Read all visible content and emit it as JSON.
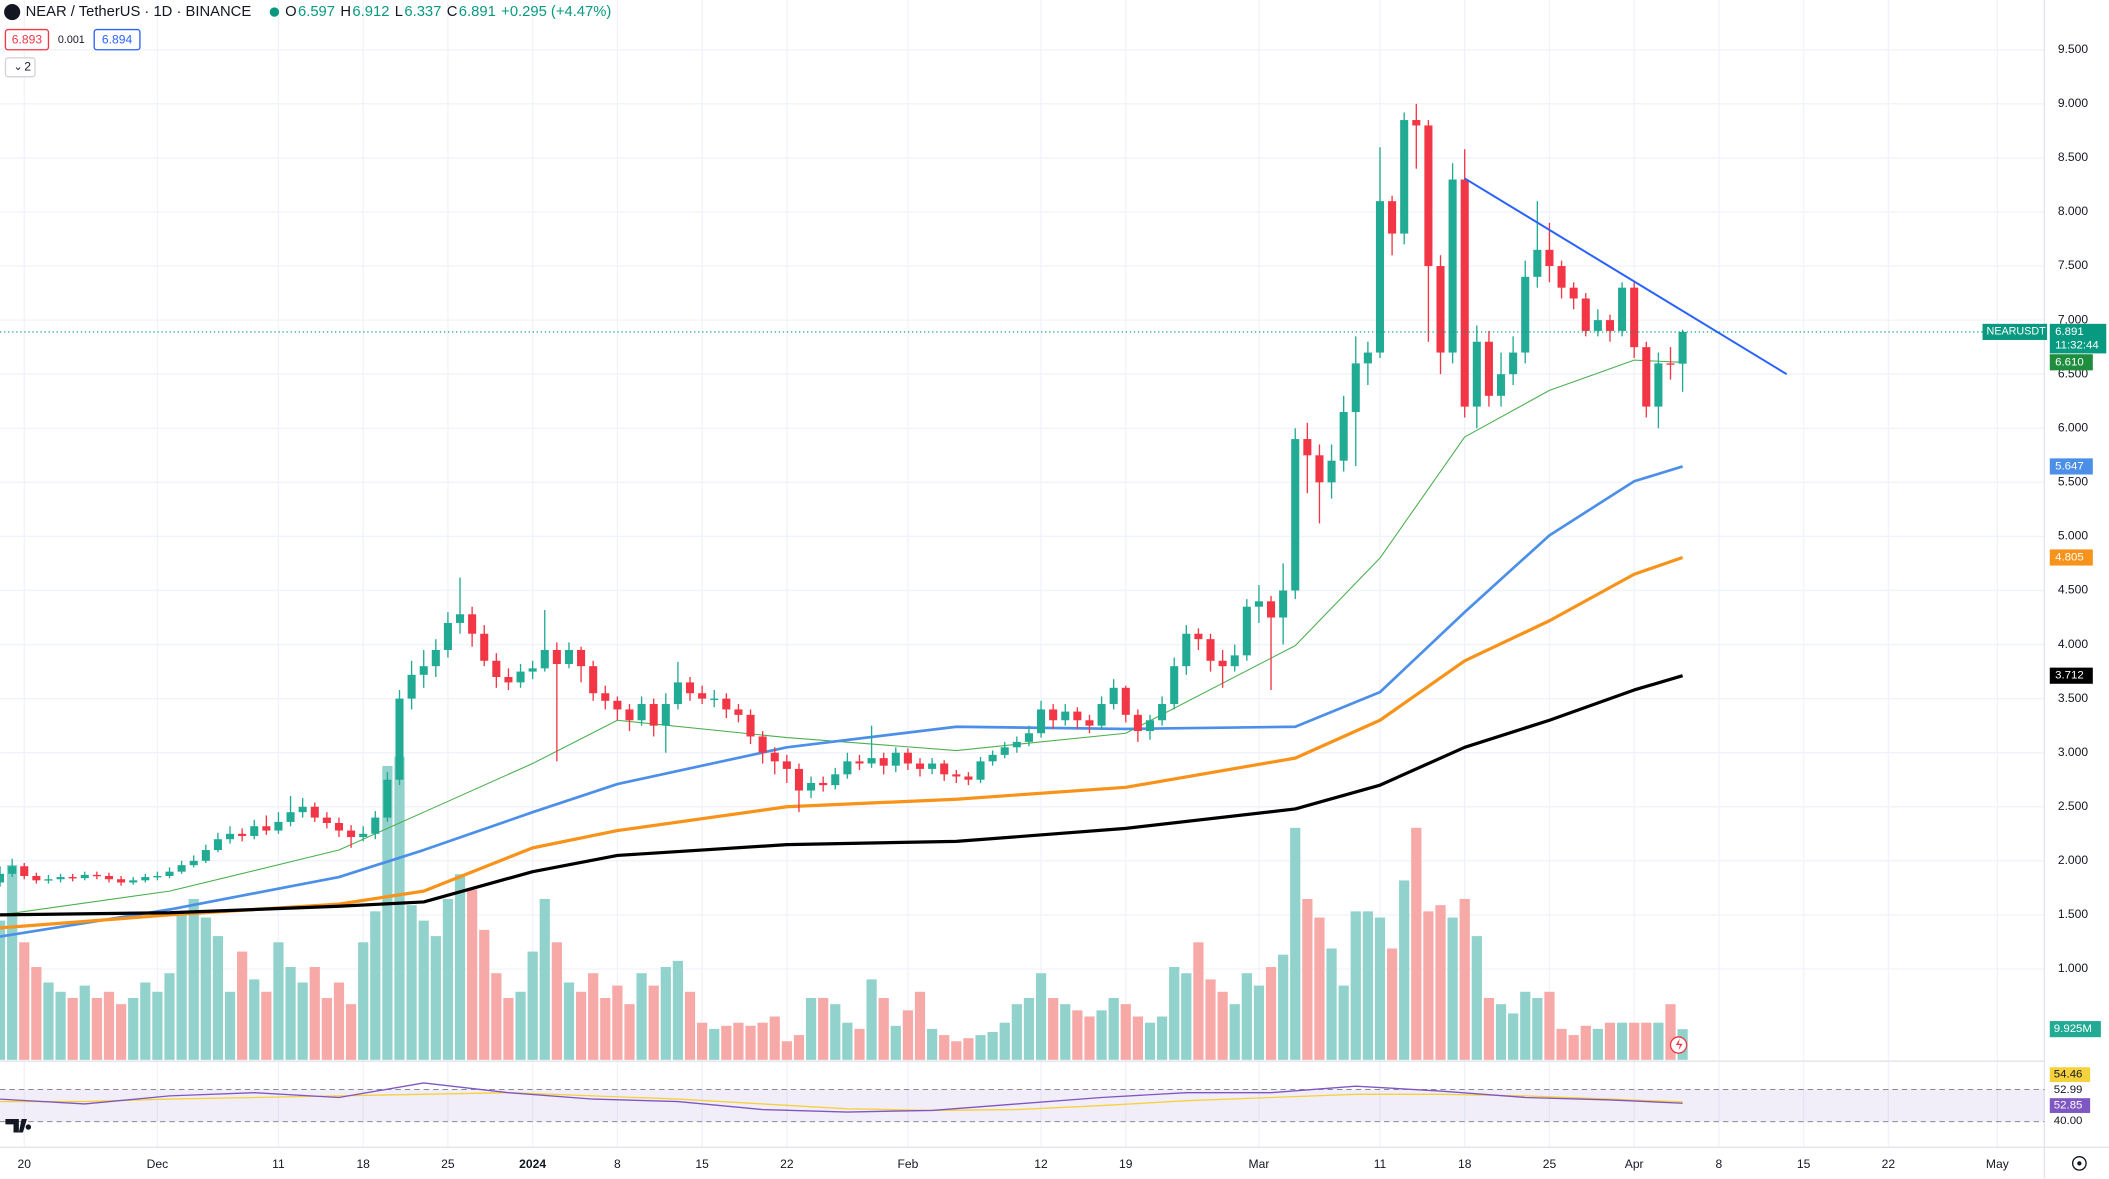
{
  "chart_data": {
    "type": "candlestick",
    "header": {
      "symbol": "NEAR / TetherUS · 1D · BINANCE",
      "ohlc": [
        {
          "key": "O",
          "value": "6.597"
        },
        {
          "key": "H",
          "value": "6.912"
        },
        {
          "key": "L",
          "value": "6.337"
        },
        {
          "key": "C",
          "value": "6.891"
        }
      ],
      "change": "+0.295 (+4.47%)",
      "sell": "6.893",
      "spread": "0.001",
      "buy": "6.894",
      "indicators": "2"
    },
    "up_color": "#22ab94",
    "down_color": "#f23645",
    "volume_up_color": "#92d2cc",
    "volume_down_color": "#f7a9a7",
    "ylim": [
      0.16,
      9.96
    ],
    "yticks": [
      {
        "value": 1.0,
        "label": "1.000"
      },
      {
        "value": 1.5,
        "label": "1.500"
      },
      {
        "value": 2.0,
        "label": "2.000"
      },
      {
        "value": 2.5,
        "label": "2.500"
      },
      {
        "value": 3.0,
        "label": "3.000"
      },
      {
        "value": 3.5,
        "label": "3.500"
      },
      {
        "value": 4.0,
        "label": "4.000"
      },
      {
        "value": 4.5,
        "label": "4.500"
      },
      {
        "value": 5.0,
        "label": "5.000"
      },
      {
        "value": 5.5,
        "label": "5.500"
      },
      {
        "value": 6.0,
        "label": "6.000"
      },
      {
        "value": 6.5,
        "label": "6.500"
      },
      {
        "value": 7.0,
        "label": "7.000"
      },
      {
        "value": 7.5,
        "label": "7.500"
      },
      {
        "value": 8.0,
        "label": "8.000"
      },
      {
        "value": 8.5,
        "label": "8.500"
      },
      {
        "value": 9.0,
        "label": "9.000"
      },
      {
        "value": 9.5,
        "label": "9.500"
      }
    ],
    "xticks": [
      {
        "value": 2,
        "label": "20"
      },
      {
        "value": 13,
        "label": "Dec"
      },
      {
        "value": 23,
        "label": "11"
      },
      {
        "value": 30,
        "label": "18"
      },
      {
        "value": 37,
        "label": "25"
      },
      {
        "value": 44,
        "label": "2024"
      },
      {
        "value": 51,
        "label": "8"
      },
      {
        "value": 58,
        "label": "15"
      },
      {
        "value": 65,
        "label": "22"
      },
      {
        "value": 75,
        "label": "Feb"
      },
      {
        "value": 86,
        "label": "12"
      },
      {
        "value": 93,
        "label": "19"
      },
      {
        "value": 104,
        "label": "Mar"
      },
      {
        "value": 114,
        "label": "11"
      },
      {
        "value": 121,
        "label": "18"
      },
      {
        "value": 128,
        "label": "25"
      },
      {
        "value": 135,
        "label": "Apr"
      },
      {
        "value": 142,
        "label": "8"
      },
      {
        "value": 149,
        "label": "15"
      },
      {
        "value": 156,
        "label": "22"
      },
      {
        "value": 165,
        "label": "May"
      }
    ],
    "candles": [
      [
        1.8,
        1.95,
        1.76,
        1.88
      ],
      [
        1.88,
        2.02,
        1.85,
        1.95
      ],
      [
        1.95,
        1.98,
        1.83,
        1.86
      ],
      [
        1.86,
        1.89,
        1.79,
        1.82
      ],
      [
        1.82,
        1.87,
        1.79,
        1.83
      ],
      [
        1.83,
        1.88,
        1.8,
        1.85
      ],
      [
        1.85,
        1.88,
        1.81,
        1.84
      ],
      [
        1.84,
        1.9,
        1.82,
        1.87
      ],
      [
        1.87,
        1.9,
        1.83,
        1.86
      ],
      [
        1.86,
        1.89,
        1.8,
        1.83
      ],
      [
        1.83,
        1.86,
        1.77,
        1.8
      ],
      [
        1.8,
        1.85,
        1.78,
        1.82
      ],
      [
        1.82,
        1.88,
        1.8,
        1.85
      ],
      [
        1.85,
        1.9,
        1.82,
        1.86
      ],
      [
        1.86,
        1.94,
        1.84,
        1.9
      ],
      [
        1.9,
        2.0,
        1.88,
        1.96
      ],
      [
        1.96,
        2.05,
        1.94,
        2.0
      ],
      [
        2.0,
        2.15,
        1.98,
        2.1
      ],
      [
        2.1,
        2.26,
        2.08,
        2.2
      ],
      [
        2.2,
        2.32,
        2.16,
        2.25
      ],
      [
        2.25,
        2.3,
        2.18,
        2.23
      ],
      [
        2.23,
        2.38,
        2.2,
        2.32
      ],
      [
        2.32,
        2.42,
        2.24,
        2.28
      ],
      [
        2.28,
        2.45,
        2.25,
        2.36
      ],
      [
        2.36,
        2.6,
        2.32,
        2.45
      ],
      [
        2.45,
        2.58,
        2.4,
        2.5
      ],
      [
        2.5,
        2.54,
        2.36,
        2.4
      ],
      [
        2.4,
        2.45,
        2.3,
        2.35
      ],
      [
        2.35,
        2.4,
        2.22,
        2.28
      ],
      [
        2.28,
        2.33,
        2.12,
        2.22
      ],
      [
        2.22,
        2.32,
        2.18,
        2.25
      ],
      [
        2.25,
        2.46,
        2.2,
        2.4
      ],
      [
        2.4,
        2.82,
        2.36,
        2.75
      ],
      [
        2.75,
        3.58,
        2.7,
        3.5
      ],
      [
        3.5,
        3.85,
        3.4,
        3.72
      ],
      [
        3.72,
        3.95,
        3.6,
        3.8
      ],
      [
        3.8,
        4.05,
        3.7,
        3.95
      ],
      [
        3.95,
        4.3,
        3.88,
        4.2
      ],
      [
        4.2,
        4.62,
        4.1,
        4.28
      ],
      [
        4.28,
        4.35,
        3.98,
        4.1
      ],
      [
        4.1,
        4.18,
        3.8,
        3.85
      ],
      [
        3.85,
        3.92,
        3.6,
        3.7
      ],
      [
        3.7,
        3.78,
        3.58,
        3.65
      ],
      [
        3.65,
        3.82,
        3.6,
        3.75
      ],
      [
        3.75,
        3.85,
        3.68,
        3.78
      ],
      [
        3.78,
        4.32,
        3.75,
        3.95
      ],
      [
        3.95,
        4.02,
        2.92,
        3.82
      ],
      [
        3.82,
        4.02,
        3.78,
        3.95
      ],
      [
        3.95,
        3.98,
        3.65,
        3.8
      ],
      [
        3.8,
        3.85,
        3.48,
        3.55
      ],
      [
        3.55,
        3.62,
        3.4,
        3.48
      ],
      [
        3.48,
        3.52,
        3.3,
        3.4
      ],
      [
        3.4,
        3.45,
        3.2,
        3.3
      ],
      [
        3.3,
        3.52,
        3.25,
        3.45
      ],
      [
        3.45,
        3.5,
        3.15,
        3.25
      ],
      [
        3.25,
        3.55,
        3.0,
        3.45
      ],
      [
        3.45,
        3.84,
        3.4,
        3.65
      ],
      [
        3.65,
        3.7,
        3.48,
        3.55
      ],
      [
        3.55,
        3.62,
        3.45,
        3.5
      ],
      [
        3.5,
        3.58,
        3.42,
        3.5
      ],
      [
        3.5,
        3.55,
        3.32,
        3.4
      ],
      [
        3.4,
        3.45,
        3.28,
        3.35
      ],
      [
        3.35,
        3.4,
        3.08,
        3.15
      ],
      [
        3.15,
        3.2,
        2.9,
        3.0
      ],
      [
        3.0,
        3.05,
        2.8,
        2.92
      ],
      [
        2.92,
        2.98,
        2.72,
        2.85
      ],
      [
        2.85,
        2.9,
        2.45,
        2.65
      ],
      [
        2.65,
        2.78,
        2.58,
        2.72
      ],
      [
        2.72,
        2.78,
        2.64,
        2.7
      ],
      [
        2.7,
        2.86,
        2.66,
        2.8
      ],
      [
        2.8,
        3.0,
        2.76,
        2.92
      ],
      [
        2.92,
        2.98,
        2.84,
        2.9
      ],
      [
        2.9,
        3.25,
        2.86,
        2.95
      ],
      [
        2.95,
        3.0,
        2.8,
        2.88
      ],
      [
        2.88,
        3.05,
        2.82,
        3.0
      ],
      [
        3.0,
        3.04,
        2.84,
        2.9
      ],
      [
        2.9,
        2.95,
        2.78,
        2.85
      ],
      [
        2.85,
        2.95,
        2.8,
        2.9
      ],
      [
        2.9,
        2.93,
        2.74,
        2.8
      ],
      [
        2.8,
        2.84,
        2.72,
        2.78
      ],
      [
        2.78,
        2.82,
        2.7,
        2.75
      ],
      [
        2.75,
        2.96,
        2.72,
        2.92
      ],
      [
        2.92,
        3.02,
        2.88,
        2.98
      ],
      [
        2.98,
        3.1,
        2.95,
        3.05
      ],
      [
        3.05,
        3.15,
        3.0,
        3.1
      ],
      [
        3.1,
        3.25,
        3.06,
        3.18
      ],
      [
        3.18,
        3.48,
        3.14,
        3.4
      ],
      [
        3.4,
        3.45,
        3.22,
        3.3
      ],
      [
        3.3,
        3.45,
        3.25,
        3.38
      ],
      [
        3.38,
        3.42,
        3.22,
        3.3
      ],
      [
        3.3,
        3.35,
        3.18,
        3.25
      ],
      [
        3.25,
        3.52,
        3.22,
        3.45
      ],
      [
        3.45,
        3.68,
        3.4,
        3.6
      ],
      [
        3.6,
        3.62,
        3.28,
        3.35
      ],
      [
        3.35,
        3.4,
        3.1,
        3.2
      ],
      [
        3.2,
        3.35,
        3.12,
        3.3
      ],
      [
        3.3,
        3.52,
        3.25,
        3.45
      ],
      [
        3.45,
        3.88,
        3.4,
        3.8
      ],
      [
        3.8,
        4.18,
        3.72,
        4.1
      ],
      [
        4.1,
        4.15,
        3.95,
        4.05
      ],
      [
        4.05,
        4.1,
        3.75,
        3.85
      ],
      [
        3.85,
        3.95,
        3.6,
        3.8
      ],
      [
        3.8,
        4.0,
        3.75,
        3.9
      ],
      [
        3.9,
        4.42,
        3.85,
        4.35
      ],
      [
        4.35,
        4.55,
        4.2,
        4.4
      ],
      [
        4.4,
        4.45,
        3.58,
        4.25
      ],
      [
        4.25,
        4.75,
        4.0,
        4.5
      ],
      [
        4.5,
        6.0,
        4.42,
        5.9
      ],
      [
        5.9,
        6.05,
        5.4,
        5.75
      ],
      [
        5.75,
        5.85,
        5.12,
        5.5
      ],
      [
        5.5,
        5.85,
        5.35,
        5.7
      ],
      [
        5.7,
        6.3,
        5.6,
        6.15
      ],
      [
        6.15,
        6.85,
        5.65,
        6.6
      ],
      [
        6.6,
        6.8,
        6.4,
        6.7
      ],
      [
        6.7,
        8.6,
        6.65,
        8.1
      ],
      [
        8.1,
        8.15,
        7.6,
        7.8
      ],
      [
        7.8,
        8.92,
        7.7,
        8.85
      ],
      [
        8.85,
        9.0,
        8.4,
        8.8
      ],
      [
        8.8,
        8.85,
        6.8,
        7.5
      ],
      [
        7.5,
        7.6,
        6.5,
        6.7
      ],
      [
        6.7,
        8.45,
        6.6,
        8.3
      ],
      [
        8.3,
        8.58,
        6.1,
        6.2
      ],
      [
        6.2,
        6.95,
        6.0,
        6.8
      ],
      [
        6.8,
        6.9,
        6.2,
        6.3
      ],
      [
        6.3,
        6.7,
        6.2,
        6.5
      ],
      [
        6.5,
        6.85,
        6.4,
        6.7
      ],
      [
        6.7,
        7.55,
        6.6,
        7.4
      ],
      [
        7.4,
        8.1,
        7.3,
        7.65
      ],
      [
        7.65,
        7.9,
        7.35,
        7.5
      ],
      [
        7.5,
        7.55,
        7.2,
        7.3
      ],
      [
        7.3,
        7.35,
        7.1,
        7.2
      ],
      [
        7.2,
        7.25,
        6.85,
        6.9
      ],
      [
        6.9,
        7.1,
        6.85,
        7.0
      ],
      [
        7.0,
        7.05,
        6.8,
        6.9
      ],
      [
        6.9,
        7.35,
        6.85,
        7.3
      ],
      [
        7.3,
        7.35,
        6.65,
        6.75
      ],
      [
        6.75,
        6.8,
        6.1,
        6.2
      ],
      [
        6.2,
        6.7,
        6.0,
        6.6
      ],
      [
        6.6,
        6.75,
        6.45,
        6.597
      ],
      [
        6.597,
        6.912,
        6.337,
        6.891
      ]
    ],
    "volume_ylim": [
      0,
      100
    ],
    "volume": [
      45,
      63,
      38,
      30,
      25,
      22,
      20,
      24,
      20,
      22,
      18,
      20,
      25,
      22,
      28,
      48,
      52,
      46,
      40,
      22,
      35,
      26,
      22,
      38,
      30,
      25,
      30,
      20,
      25,
      18,
      38,
      48,
      95,
      98,
      50,
      45,
      40,
      52,
      60,
      55,
      42,
      28,
      20,
      22,
      35,
      52,
      38,
      25,
      22,
      28,
      20,
      24,
      18,
      28,
      24,
      30,
      32,
      22,
      12,
      10,
      11,
      12,
      11,
      12,
      14,
      6,
      8,
      20,
      20,
      18,
      12,
      10,
      26,
      20,
      11,
      16,
      22,
      10,
      8,
      6,
      7,
      8,
      9,
      12,
      18,
      20,
      28,
      20,
      18,
      16,
      14,
      16,
      20,
      18,
      14,
      12,
      14,
      30,
      28,
      38,
      26,
      22,
      18,
      28,
      24,
      30,
      34,
      75,
      52,
      46,
      36,
      24,
      48,
      48,
      46,
      36,
      58,
      75,
      48,
      50,
      46,
      52,
      40,
      20,
      18,
      15,
      22,
      20,
      22,
      10,
      8,
      11,
      10,
      12,
      12,
      12,
      12,
      12,
      18,
      9.925
    ],
    "series": [
      {
        "color": "#4caf50",
        "width": 0.8,
        "x": [
          0,
          14,
          28,
          35,
          44,
          51,
          65,
          79,
          93,
          107,
          114,
          121,
          128,
          135,
          139
        ],
        "values": [
          1.5,
          1.72,
          2.1,
          2.45,
          2.9,
          3.3,
          3.14,
          3.02,
          3.18,
          3.99,
          4.8,
          5.92,
          6.35,
          6.63,
          6.61
        ],
        "tag": {
          "label": "6.610",
          "color": "#1e8e3e"
        }
      },
      {
        "color": "#4c8fe8",
        "width": 2,
        "x": [
          0,
          14,
          28,
          35,
          44,
          51,
          65,
          79,
          93,
          107,
          114,
          121,
          128,
          135,
          139
        ],
        "values": [
          1.3,
          1.55,
          1.85,
          2.1,
          2.45,
          2.71,
          3.05,
          3.24,
          3.22,
          3.24,
          3.56,
          4.3,
          5.01,
          5.51,
          5.647
        ],
        "tag": {
          "label": "5.647",
          "color": "#4c8fe8"
        }
      },
      {
        "color": "#f7931a",
        "width": 2.4,
        "x": [
          0,
          14,
          28,
          35,
          44,
          51,
          65,
          79,
          93,
          107,
          114,
          121,
          128,
          135,
          139
        ],
        "values": [
          1.38,
          1.5,
          1.6,
          1.72,
          2.12,
          2.28,
          2.5,
          2.57,
          2.68,
          2.95,
          3.3,
          3.85,
          4.22,
          4.65,
          4.805
        ],
        "tag": {
          "label": "4.805",
          "color": "#f7931a"
        }
      },
      {
        "color": "#000000",
        "width": 2.4,
        "x": [
          0,
          14,
          28,
          35,
          44,
          51,
          65,
          79,
          93,
          107,
          114,
          121,
          128,
          135,
          139
        ],
        "values": [
          1.5,
          1.52,
          1.58,
          1.62,
          1.9,
          2.05,
          2.15,
          2.18,
          2.3,
          2.48,
          2.7,
          3.05,
          3.3,
          3.58,
          3.712
        ],
        "tag": {
          "label": "3.712",
          "color": "#000000"
        }
      }
    ],
    "trendline": {
      "color": "#2962ff",
      "x": [
        121,
        147.6
      ],
      "values": [
        8.31,
        6.5
      ]
    },
    "last_price": {
      "symbol": "NEARUSDT",
      "label": "6.891",
      "value": 6.891,
      "countdown": "11:32:44",
      "color": "#089981"
    },
    "volume_tag": {
      "label": "9.925M",
      "color": "#22ab94"
    },
    "rsi": {
      "ylim": [
        0,
        100
      ],
      "band": [
        30,
        70
      ],
      "x": [
        0,
        7,
        14,
        21,
        28,
        35,
        42,
        49,
        56,
        63,
        70,
        77,
        84,
        91,
        98,
        105,
        112,
        119,
        126,
        133,
        139
      ],
      "values": [
        58,
        52,
        62,
        66,
        60,
        78,
        66,
        58,
        55,
        45,
        42,
        44,
        52,
        60,
        66,
        66,
        74,
        68,
        60,
        57,
        52.85
      ],
      "ma": [
        55,
        55,
        58,
        60,
        62,
        64,
        66,
        62,
        58,
        52,
        46,
        44,
        45,
        50,
        56,
        60,
        64,
        64,
        62,
        58,
        54.46
      ],
      "color": "#7e57c2",
      "ma_color": "#f5d23c",
      "tags": [
        {
          "label": "54.46",
          "color": "#f5d23c",
          "text": "#131722"
        },
        {
          "label": "52.99",
          "color": "#ffffff",
          "text": "#131722"
        },
        {
          "label": "52.85",
          "color": "#7e57c2",
          "text": "#ffffff"
        },
        {
          "label": "40.00",
          "color": "#ffffff",
          "text": "#131722"
        }
      ]
    }
  }
}
